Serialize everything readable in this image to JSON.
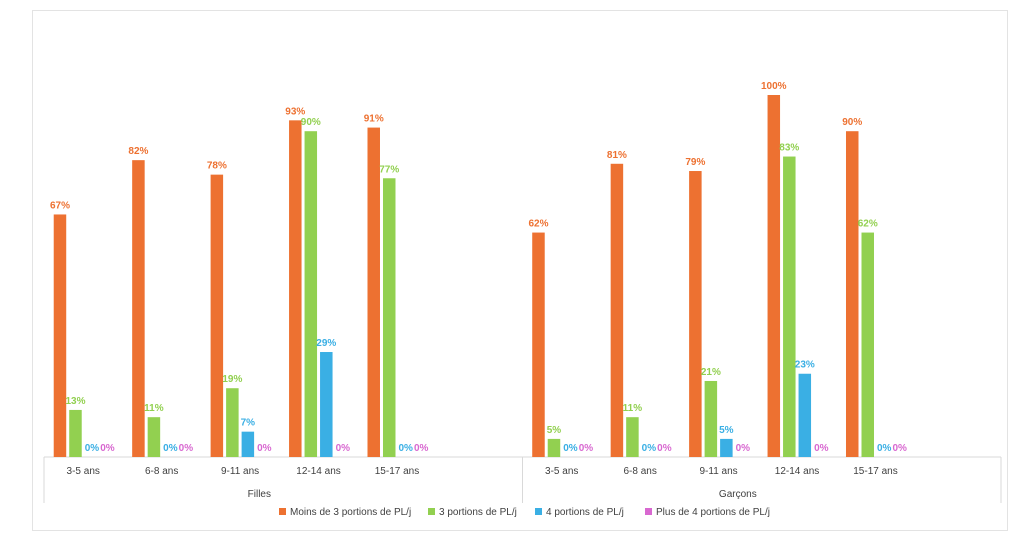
{
  "chart_data": {
    "type": "bar",
    "title": "",
    "xlabel": "",
    "ylabel": "",
    "ylim": [
      0,
      100
    ],
    "grid": false,
    "legend_position": "bottom",
    "groups": [
      {
        "name": "Filles",
        "categories": [
          "3-5 ans",
          "6-8 ans",
          "9-11 ans",
          "12-14 ans",
          "15-17 ans"
        ],
        "series": [
          {
            "values": [
              67,
              82,
              78,
              93,
              91
            ],
            "labels": [
              "67%",
              "82%",
              "78%",
              "93%",
              "91%"
            ]
          },
          {
            "values": [
              13,
              11,
              19,
              90,
              77
            ],
            "labels": [
              "13%",
              "11%",
              "19%",
              "90%",
              "77%"
            ]
          },
          {
            "values": [
              0,
              0,
              7,
              29,
              0
            ],
            "labels": [
              "0%",
              "0%",
              "7%",
              "29%",
              "0%"
            ]
          },
          {
            "values": [
              0,
              0,
              0,
              0,
              0
            ],
            "labels": [
              "0%",
              "0%",
              "0%",
              "0%",
              "0%"
            ]
          }
        ]
      },
      {
        "name": "Garçons",
        "categories": [
          "3-5 ans",
          "6-8 ans",
          "9-11 ans",
          "12-14 ans",
          "15-17 ans"
        ],
        "series": [
          {
            "values": [
              62,
              81,
              79,
              100,
              90
            ],
            "labels": [
              "62%",
              "81%",
              "79%",
              "100%",
              "90%"
            ]
          },
          {
            "values": [
              5,
              11,
              21,
              83,
              62
            ],
            "labels": [
              "5%",
              "11%",
              "21%",
              "83%",
              "62%"
            ]
          },
          {
            "values": [
              0,
              0,
              5,
              23,
              0
            ],
            "labels": [
              "0%",
              "0%",
              "5%",
              "23%",
              "0%"
            ]
          },
          {
            "values": [
              0,
              0,
              0,
              0,
              0
            ],
            "labels": [
              "0%",
              "0%",
              "0%",
              "0%",
              "0%"
            ]
          }
        ]
      }
    ],
    "legend": [
      {
        "name": "Moins de 3 portions de PL/j",
        "color": "#ED7131"
      },
      {
        "name": "3 portions de PL/j",
        "color": "#92D050"
      },
      {
        "name": "4 portions de PL/j",
        "color": "#3AAFE4"
      },
      {
        "name": "Plus de 4 portions de PL/j",
        "color": "#D868D0"
      }
    ]
  }
}
